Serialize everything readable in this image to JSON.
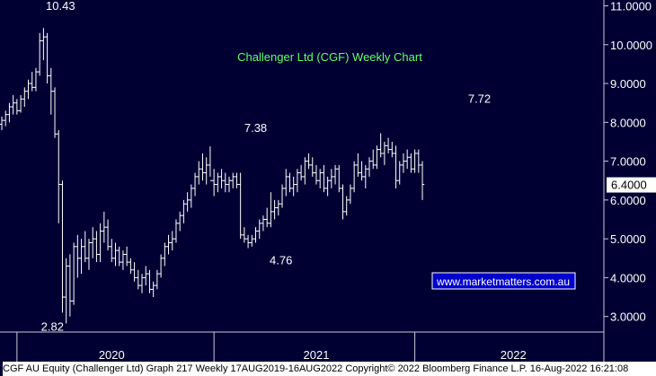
{
  "chart_data": {
    "type": "candlestick",
    "title": "Challenger Ltd (CGF) Weekly Chart",
    "ylim": [
      2.6,
      11.15
    ],
    "y_ticks": [
      3,
      4,
      5,
      6,
      7,
      8,
      9,
      10,
      11
    ],
    "y_tick_labels": [
      "3.0000",
      "4.0000",
      "5.0000",
      "6.0000",
      "7.0000",
      "8.0000",
      "9.0000",
      "10.0000",
      "11.0000"
    ],
    "last_price_label": "6.4000",
    "last_price": 6.4,
    "x_range_weeks": [
      0,
      157
    ],
    "year_labels": [
      {
        "label": "2020",
        "week": 29
      },
      {
        "label": "2021",
        "week": 83
      },
      {
        "label": "2022",
        "week": 135
      }
    ],
    "year_dividers_week": [
      4,
      56,
      109
    ],
    "annotations": [
      {
        "text": "10.43",
        "week": 14,
        "value": 10.43
      },
      {
        "text": "2.82",
        "week": 17,
        "value": 2.82
      },
      {
        "text": "7.38",
        "week": 64,
        "value": 7.38
      },
      {
        "text": "4.76",
        "week": 74,
        "value": 4.76
      },
      {
        "text": "7.72",
        "week": 124,
        "value": 7.72
      }
    ],
    "watermark": "www.marketmatters.com.au",
    "series": [
      {
        "values": [
          [
            7.95,
            8.15,
            7.8,
            8.05
          ],
          [
            8.05,
            8.3,
            7.9,
            8.2
          ],
          [
            8.2,
            8.5,
            8.0,
            8.4
          ],
          [
            8.4,
            8.7,
            8.2,
            8.5
          ],
          [
            8.5,
            8.6,
            8.2,
            8.3
          ],
          [
            8.3,
            8.7,
            8.25,
            8.6
          ],
          [
            8.6,
            8.9,
            8.4,
            8.8
          ],
          [
            8.8,
            9.1,
            8.6,
            9.0
          ],
          [
            9.0,
            9.3,
            8.8,
            8.9
          ],
          [
            8.9,
            9.4,
            8.8,
            9.3
          ],
          [
            9.3,
            10.3,
            9.2,
            10.1
          ],
          [
            10.1,
            10.43,
            9.6,
            10.2
          ],
          [
            10.2,
            10.3,
            9.0,
            9.2
          ],
          [
            9.2,
            9.4,
            8.2,
            8.8
          ],
          [
            8.8,
            8.9,
            7.6,
            7.7
          ],
          [
            7.7,
            7.8,
            5.4,
            6.4
          ],
          [
            6.4,
            6.5,
            3.1,
            3.5
          ],
          [
            3.5,
            4.5,
            2.82,
            4.3
          ],
          [
            4.3,
            4.6,
            3.0,
            3.4
          ],
          [
            3.4,
            4.9,
            3.3,
            4.8
          ],
          [
            4.8,
            5.1,
            4.0,
            4.5
          ],
          [
            4.5,
            5.0,
            4.1,
            4.8
          ],
          [
            4.8,
            5.2,
            4.4,
            4.5
          ],
          [
            4.5,
            5.0,
            4.2,
            4.9
          ],
          [
            4.9,
            5.3,
            4.5,
            5.0
          ],
          [
            5.0,
            5.2,
            4.4,
            4.6
          ],
          [
            4.6,
            5.4,
            4.4,
            5.2
          ],
          [
            5.2,
            5.7,
            4.9,
            5.3
          ],
          [
            5.3,
            5.5,
            4.7,
            4.8
          ],
          [
            4.8,
            5.0,
            4.4,
            4.5
          ],
          [
            4.5,
            4.9,
            4.3,
            4.7
          ],
          [
            4.7,
            4.8,
            4.3,
            4.4
          ],
          [
            4.4,
            4.7,
            4.2,
            4.6
          ],
          [
            4.6,
            4.8,
            4.3,
            4.4
          ],
          [
            4.4,
            4.5,
            4.1,
            4.2
          ],
          [
            4.2,
            4.4,
            3.9,
            4.0
          ],
          [
            4.0,
            4.2,
            3.7,
            3.8
          ],
          [
            3.8,
            4.1,
            3.6,
            4.0
          ],
          [
            4.0,
            4.3,
            3.8,
            4.1
          ],
          [
            4.1,
            4.2,
            3.6,
            3.7
          ],
          [
            3.7,
            3.9,
            3.5,
            3.8
          ],
          [
            3.8,
            4.2,
            3.7,
            4.1
          ],
          [
            4.1,
            4.6,
            4.0,
            4.5
          ],
          [
            4.5,
            4.9,
            4.3,
            4.8
          ],
          [
            4.8,
            5.1,
            4.6,
            4.9
          ],
          [
            4.9,
            5.2,
            4.7,
            5.0
          ],
          [
            5.0,
            5.5,
            4.9,
            5.4
          ],
          [
            5.4,
            5.7,
            5.2,
            5.6
          ],
          [
            5.6,
            6.0,
            5.4,
            5.9
          ],
          [
            5.9,
            6.2,
            5.7,
            6.0
          ],
          [
            6.0,
            6.4,
            5.8,
            6.3
          ],
          [
            6.3,
            6.7,
            6.1,
            6.6
          ],
          [
            6.6,
            7.0,
            6.4,
            6.8
          ],
          [
            6.8,
            7.2,
            6.5,
            6.7
          ],
          [
            6.7,
            7.1,
            6.4,
            6.9
          ],
          [
            6.9,
            7.38,
            6.6,
            6.5
          ],
          [
            6.5,
            6.8,
            6.1,
            6.4
          ],
          [
            6.4,
            6.7,
            6.2,
            6.6
          ],
          [
            6.6,
            6.8,
            6.3,
            6.5
          ],
          [
            6.5,
            6.7,
            6.2,
            6.4
          ],
          [
            6.4,
            6.6,
            6.2,
            6.5
          ],
          [
            6.5,
            6.7,
            6.3,
            6.6
          ],
          [
            6.6,
            6.7,
            6.3,
            6.4
          ],
          [
            6.4,
            6.7,
            5.0,
            5.1
          ],
          [
            5.1,
            5.3,
            4.9,
            5.0
          ],
          [
            5.0,
            5.1,
            4.76,
            4.9
          ],
          [
            4.9,
            5.1,
            4.8,
            5.0
          ],
          [
            5.0,
            5.3,
            4.9,
            5.2
          ],
          [
            5.2,
            5.5,
            5.0,
            5.4
          ],
          [
            5.4,
            5.6,
            5.2,
            5.5
          ],
          [
            5.5,
            5.8,
            5.3,
            5.4
          ],
          [
            5.4,
            6.2,
            5.3,
            5.7
          ],
          [
            5.7,
            6.0,
            5.5,
            5.8
          ],
          [
            5.8,
            6.0,
            5.6,
            5.9
          ],
          [
            5.9,
            6.4,
            5.8,
            6.3
          ],
          [
            6.3,
            6.8,
            6.1,
            6.6
          ],
          [
            6.6,
            6.7,
            6.2,
            6.3
          ],
          [
            6.3,
            6.6,
            6.1,
            6.4
          ],
          [
            6.4,
            6.8,
            6.2,
            6.7
          ],
          [
            6.7,
            6.9,
            6.5,
            6.6
          ],
          [
            6.6,
            7.1,
            6.4,
            7.0
          ],
          [
            7.0,
            7.2,
            6.8,
            6.9
          ],
          [
            6.9,
            7.1,
            6.6,
            6.7
          ],
          [
            6.7,
            6.9,
            6.4,
            6.5
          ],
          [
            6.5,
            6.8,
            6.3,
            6.7
          ],
          [
            6.7,
            6.9,
            6.2,
            6.3
          ],
          [
            6.3,
            6.6,
            6.1,
            6.5
          ],
          [
            6.5,
            6.8,
            6.3,
            6.6
          ],
          [
            6.6,
            6.9,
            6.4,
            6.8
          ],
          [
            6.8,
            6.9,
            6.2,
            6.3
          ],
          [
            6.3,
            6.4,
            5.5,
            5.7
          ],
          [
            5.7,
            6.1,
            5.6,
            6.0
          ],
          [
            6.0,
            6.4,
            5.9,
            6.3
          ],
          [
            6.3,
            7.0,
            6.2,
            6.9
          ],
          [
            6.9,
            7.2,
            6.6,
            6.7
          ],
          [
            6.7,
            7.0,
            6.5,
            6.6
          ],
          [
            6.6,
            6.9,
            6.3,
            6.8
          ],
          [
            6.8,
            7.1,
            6.6,
            7.0
          ],
          [
            7.0,
            7.3,
            6.8,
            6.9
          ],
          [
            6.9,
            7.4,
            6.8,
            7.3
          ],
          [
            7.3,
            7.72,
            7.1,
            7.2
          ],
          [
            7.2,
            7.5,
            6.9,
            7.4
          ],
          [
            7.4,
            7.6,
            7.2,
            7.3
          ],
          [
            7.3,
            7.5,
            7.1,
            7.2
          ],
          [
            7.2,
            7.4,
            6.3,
            6.5
          ],
          [
            6.5,
            7.0,
            6.4,
            6.9
          ],
          [
            6.9,
            7.2,
            6.7,
            7.0
          ],
          [
            7.0,
            7.3,
            6.8,
            7.1
          ],
          [
            7.1,
            7.2,
            6.7,
            6.8
          ],
          [
            6.8,
            7.3,
            6.7,
            7.2
          ],
          [
            7.2,
            7.3,
            6.7,
            6.9
          ],
          [
            6.9,
            7.0,
            6.0,
            6.4
          ]
        ]
      }
    ]
  },
  "footer": {
    "text": "CGF AU Equity (Challenger Ltd) Graph 217  Weekly 17AUG2019-16AUG2022  Copyright© 2022 Bloomberg Finance L.P.   16-Aug-2022 16:21:08"
  },
  "colors": {
    "background": "#000033",
    "bars": "#ffffff",
    "title": "#66ff66",
    "watermark_text": "#ffffff",
    "watermark_bg": "#0000cc",
    "watermark_border": "#ffffff",
    "price_tag_bg": "#ffffff",
    "price_tag_text": "#000000"
  }
}
